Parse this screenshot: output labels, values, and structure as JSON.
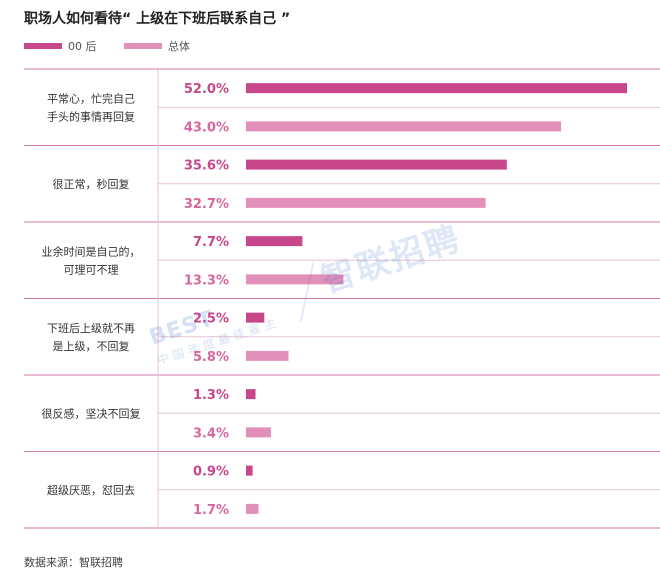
{
  "title": "职场人如何看待“ 上级在下班后联系自己 ”",
  "source": "数据来源：智联招聘",
  "watermark": {
    "text": "智联招聘",
    "badge_logo": "BEST",
    "badge_sub": "中国年度最佳雇主"
  },
  "colors": {
    "series_00": "#c8478a",
    "series_all": "#e28fb9",
    "label_00": "#c8478a",
    "label_all": "#d9679f",
    "rule": "#d27aa7",
    "divider": "#e4c3d6"
  },
  "chart_data": {
    "type": "bar",
    "orientation": "horizontal",
    "title": "职场人如何看待“ 上级在下班后联系自己 ”",
    "categories": [
      [
        "平常心，忙完自己",
        "手头的事情再回复"
      ],
      [
        "很正常，秒回复"
      ],
      [
        "业余时间是自己的，",
        "可理可不理"
      ],
      [
        "下班后上级就不再",
        "是上级，不回复"
      ],
      [
        "很反感，坚决不回复"
      ],
      [
        "超级厌恶，怼回去"
      ]
    ],
    "series": [
      {
        "name": "00 后",
        "values": [
          52.0,
          35.6,
          7.7,
          2.5,
          1.3,
          0.9
        ]
      },
      {
        "name": "总体",
        "values": [
          43.0,
          32.7,
          13.3,
          5.8,
          3.4,
          1.7
        ]
      }
    ],
    "value_labels": [
      [
        "52.0%",
        "35.6%",
        "7.7%",
        "2.5%",
        "1.3%",
        "0.9%"
      ],
      [
        "43.0%",
        "32.7%",
        "13.3%",
        "5.8%",
        "3.4%",
        "1.7%"
      ]
    ],
    "xlim": [
      0,
      52.0
    ],
    "legend_position": "top-left",
    "grid": false
  }
}
